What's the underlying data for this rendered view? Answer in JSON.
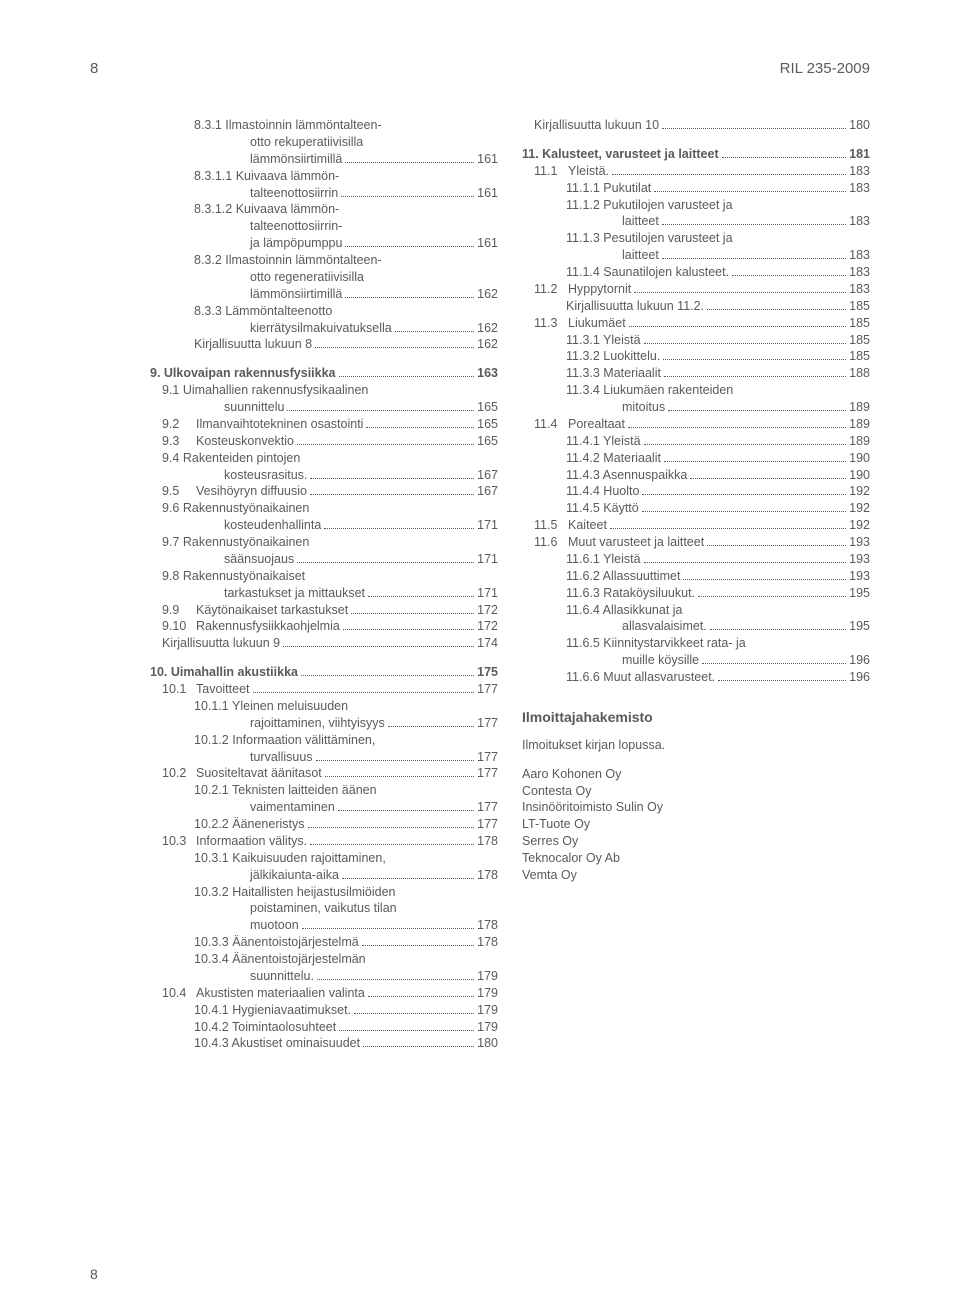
{
  "header": {
    "page_num_top": "8",
    "doc_id": "RIL 235-2009"
  },
  "footer": {
    "page_num_bottom": "8"
  },
  "left": [
    {
      "ind": 2,
      "label": "8.3.1   Ilmastoinnin lämmöntalteen-",
      "wrap": true
    },
    {
      "ind": 4,
      "label": "otto rekuperatiivisilla",
      "wrap": true
    },
    {
      "ind": 4,
      "label": "lämmönsiirtimillä",
      "pg": "161"
    },
    {
      "ind": 2,
      "label": "8.3.1.1  Kuivaava lämmön-",
      "wrap": true
    },
    {
      "ind": 4,
      "label": "talteenottosiirrin",
      "pg": "161"
    },
    {
      "ind": 2,
      "label": "8.3.1.2  Kuivaava lämmön-",
      "wrap": true
    },
    {
      "ind": 4,
      "label": "talteenottosiirrin-",
      "wrap": true
    },
    {
      "ind": 4,
      "label": "ja lämpöpumppu",
      "pg": "161"
    },
    {
      "ind": 2,
      "label": "8.3.2   Ilmastoinnin lämmöntalteen-",
      "wrap": true
    },
    {
      "ind": 4,
      "label": "otto regeneratiivisilla",
      "wrap": true
    },
    {
      "ind": 4,
      "label": "lämmönsiirtimillä",
      "pg": "162"
    },
    {
      "ind": 2,
      "label": "8.3.3   Lämmöntalteenotto",
      "wrap": true
    },
    {
      "ind": 4,
      "label": "kierrätysilmakuivatuksella",
      "pg": "162"
    },
    {
      "ind": 2,
      "label": "Kirjallisuutta lukuun 8",
      "pg": "162"
    },
    {
      "gap": true
    },
    {
      "ind": 0,
      "bold": true,
      "label": "9.   Ulkovaipan rakennusfysiikka",
      "pg": "163"
    },
    {
      "ind": 1,
      "num": "9.1",
      "label": "Uimahallien rakennusfysikaalinen",
      "wrap": true
    },
    {
      "ind": 3,
      "label": "suunnittelu",
      "pg": "165"
    },
    {
      "ind": 1,
      "num": "9.2",
      "label": "Ilmanvaihtotekninen osastointi",
      "pg": "165"
    },
    {
      "ind": 1,
      "num": "9.3",
      "label": "Kosteuskonvektio",
      "pg": "165"
    },
    {
      "ind": 1,
      "num": "9.4",
      "label": "Rakenteiden pintojen",
      "wrap": true
    },
    {
      "ind": 3,
      "label": "kosteusrasitus.",
      "pg": "167"
    },
    {
      "ind": 1,
      "num": "9.5",
      "label": "Vesihöyryn diffuusio",
      "pg": "167"
    },
    {
      "ind": 1,
      "num": "9.6",
      "label": "Rakennustyönaikainen",
      "wrap": true
    },
    {
      "ind": 3,
      "label": "kosteudenhallinta",
      "pg": "171"
    },
    {
      "ind": 1,
      "num": "9.7",
      "label": "Rakennustyönaikainen",
      "wrap": true
    },
    {
      "ind": 3,
      "label": "säänsuojaus",
      "pg": "171"
    },
    {
      "ind": 1,
      "num": "9.8",
      "label": "Rakennustyönaikaiset",
      "wrap": true
    },
    {
      "ind": 3,
      "label": "tarkastukset ja mittaukset",
      "pg": "171"
    },
    {
      "ind": 1,
      "num": "9.9",
      "label": "Käytönaikaiset tarkastukset",
      "pg": "172"
    },
    {
      "ind": 1,
      "num": "9.10",
      "label": "Rakennusfysiikkaohjelmia",
      "pg": "172"
    },
    {
      "ind": 1,
      "label": "Kirjallisuutta lukuun 9",
      "pg": "174"
    },
    {
      "gap": true
    },
    {
      "ind": 0,
      "bold": true,
      "label": "10. Uimahallin akustiikka",
      "pg": "175"
    },
    {
      "ind": 1,
      "num": "10.1",
      "label": "Tavoitteet",
      "pg": "177"
    },
    {
      "ind": 2,
      "label": "10.1.1 Yleinen meluisuuden",
      "wrap": true
    },
    {
      "ind": 4,
      "label": "rajoittaminen, viihtyisyys",
      "pg": "177"
    },
    {
      "ind": 2,
      "label": "10.1.2 Informaation välittäminen,",
      "wrap": true
    },
    {
      "ind": 4,
      "label": "turvallisuus",
      "pg": "177"
    },
    {
      "ind": 1,
      "num": "10.2",
      "label": "Suositeltavat äänitasot",
      "pg": "177"
    },
    {
      "ind": 2,
      "label": "10.2.1 Teknisten laitteiden äänen",
      "wrap": true
    },
    {
      "ind": 4,
      "label": "vaimentaminen",
      "pg": "177"
    },
    {
      "ind": 2,
      "label": "10.2.2 Ääneneristys",
      "pg": "177"
    },
    {
      "ind": 1,
      "num": "10.3",
      "label": "Informaation välitys.",
      "pg": "178"
    },
    {
      "ind": 2,
      "label": "10.3.1 Kaikuisuuden rajoittaminen,",
      "wrap": true
    },
    {
      "ind": 4,
      "label": "jälkikaiunta-aika",
      "pg": "178"
    },
    {
      "ind": 2,
      "label": "10.3.2 Haitallisten heijastusilmiöiden",
      "wrap": true
    },
    {
      "ind": 4,
      "label": "poistaminen, vaikutus tilan",
      "wrap": true
    },
    {
      "ind": 4,
      "label": "muotoon",
      "pg": "178"
    },
    {
      "ind": 2,
      "label": "10.3.3 Äänentoistojärjestelmä",
      "pg": "178"
    },
    {
      "ind": 2,
      "label": "10.3.4 Äänentoistojärjestelmän",
      "wrap": true
    },
    {
      "ind": 4,
      "label": "suunnittelu.",
      "pg": "179"
    },
    {
      "ind": 1,
      "num": "10.4",
      "label": "Akustisten materiaalien valinta",
      "pg": "179"
    },
    {
      "ind": 2,
      "label": "10.4.1 Hygieniavaatimukset.",
      "pg": "179"
    },
    {
      "ind": 2,
      "label": "10.4.2 Toimintaolosuhteet",
      "pg": "179"
    },
    {
      "ind": 2,
      "label": "10.4.3 Akustiset ominaisuudet",
      "pg": "180"
    }
  ],
  "right": [
    {
      "ind": 1,
      "label": "Kirjallisuutta lukuun 10",
      "pg": "180"
    },
    {
      "gap": true
    },
    {
      "ind": 0,
      "bold": true,
      "label": "11. Kalusteet, varusteet ja laitteet",
      "pg": "181"
    },
    {
      "ind": 1,
      "num": "11.1",
      "label": "Yleistä.",
      "pg": "183"
    },
    {
      "ind": 2,
      "label": "11.1.1 Pukutilat",
      "pg": "183"
    },
    {
      "ind": 2,
      "label": "11.1.2 Pukutilojen varusteet ja",
      "wrap": true
    },
    {
      "ind": 4,
      "label": "laitteet",
      "pg": "183"
    },
    {
      "ind": 2,
      "label": "11.1.3 Pesutilojen varusteet ja",
      "wrap": true
    },
    {
      "ind": 4,
      "label": "laitteet",
      "pg": "183"
    },
    {
      "ind": 2,
      "label": "11.1.4 Saunatilojen kalusteet.",
      "pg": "183"
    },
    {
      "ind": 1,
      "num": "11.2",
      "label": "Hyppytornit",
      "pg": "183"
    },
    {
      "ind": 2,
      "label": "Kirjallisuutta lukuun 11.2.",
      "pg": "185"
    },
    {
      "ind": 1,
      "num": "11.3",
      "label": "Liukumäet",
      "pg": "185"
    },
    {
      "ind": 2,
      "label": "11.3.1 Yleistä",
      "pg": "185"
    },
    {
      "ind": 2,
      "label": "11.3.2 Luokittelu.",
      "pg": "185"
    },
    {
      "ind": 2,
      "label": "11.3.3 Materiaalit",
      "pg": "188"
    },
    {
      "ind": 2,
      "label": "11.3.4 Liukumäen rakenteiden",
      "wrap": true
    },
    {
      "ind": 4,
      "label": "mitoitus",
      "pg": "189"
    },
    {
      "ind": 1,
      "num": "11.4",
      "label": "Porealtaat",
      "pg": "189"
    },
    {
      "ind": 2,
      "label": "11.4.1 Yleistä",
      "pg": "189"
    },
    {
      "ind": 2,
      "label": "11.4.2 Materiaalit",
      "pg": "190"
    },
    {
      "ind": 2,
      "label": "11.4.3 Asennuspaikka",
      "pg": "190"
    },
    {
      "ind": 2,
      "label": "11.4.4 Huolto",
      "pg": "192"
    },
    {
      "ind": 2,
      "label": "11.4.5 Käyttö",
      "pg": "192"
    },
    {
      "ind": 1,
      "num": "11.5",
      "label": "Kaiteet",
      "pg": "192"
    },
    {
      "ind": 1,
      "num": "11.6",
      "label": "Muut varusteet ja laitteet",
      "pg": "193"
    },
    {
      "ind": 2,
      "label": "11.6.1 Yleistä",
      "pg": "193"
    },
    {
      "ind": 2,
      "label": "11.6.2 Allassuuttimet",
      "pg": "193"
    },
    {
      "ind": 2,
      "label": "11.6.3 Rataköysiluukut.",
      "pg": "195"
    },
    {
      "ind": 2,
      "label": "11.6.4 Allasikkunat ja",
      "wrap": true
    },
    {
      "ind": 4,
      "label": "allasvalaisimet.",
      "pg": "195"
    },
    {
      "ind": 2,
      "label": "11.6.5 Kiinnitystarvikkeet rata- ja",
      "wrap": true
    },
    {
      "ind": 4,
      "label": "muille köysille",
      "pg": "196"
    },
    {
      "ind": 2,
      "label": "11.6.6 Muut allasvarusteet.",
      "pg": "196"
    }
  ],
  "advertisers": {
    "title": "Ilmoittajahakemisto",
    "note": "Ilmoitukset kirjan lopussa.",
    "list": [
      "Aaro Kohonen Oy",
      "Contesta Oy",
      "Insinööritoimisto Sulin Oy",
      "LT-Tuote Oy",
      "Serres Oy",
      "Teknocalor Oy Ab",
      "Vemta Oy"
    ]
  }
}
